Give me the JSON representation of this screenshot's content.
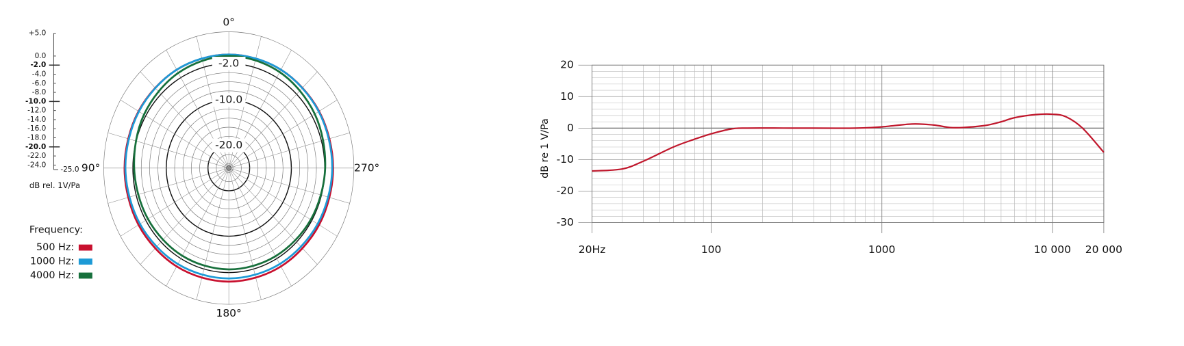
{
  "chart_data": [
    {
      "type": "polar",
      "rlim": [
        -25,
        5
      ],
      "rticks": [
        {
          "value": 5,
          "label": "+5.0"
        },
        {
          "value": 0,
          "label": "0.0"
        },
        {
          "value": -2,
          "label": "-2.0"
        },
        {
          "value": -4,
          "label": "-4.0"
        },
        {
          "value": -6,
          "label": "-6.0"
        },
        {
          "value": -8,
          "label": "-8.0"
        },
        {
          "value": -10,
          "label": "-10.0"
        },
        {
          "value": -12,
          "label": "-12.0"
        },
        {
          "value": -14,
          "label": "-14.0"
        },
        {
          "value": -16,
          "label": "-16.0"
        },
        {
          "value": -18,
          "label": "-18.0"
        },
        {
          "value": -20,
          "label": "-20.0"
        },
        {
          "value": -22,
          "label": "-22.0"
        },
        {
          "value": -24,
          "label": "-24.0"
        },
        {
          "value": -25,
          "label": "-25.0"
        }
      ],
      "ring_labels": [
        {
          "value": -2,
          "label": "-2.0"
        },
        {
          "value": -10,
          "label": "-10.0"
        },
        {
          "value": -20,
          "label": "-20.0"
        }
      ],
      "angle_ticks": [
        {
          "value": 0,
          "label": "0°"
        },
        {
          "value": 90,
          "label": "90°"
        },
        {
          "value": 180,
          "label": "180°"
        },
        {
          "value": 270,
          "label": "270°"
        }
      ],
      "rlabel": "dB rel. 1V/Pa",
      "legend_title": "Frequency:",
      "theta": [
        0,
        30,
        60,
        90,
        120,
        150,
        180,
        210,
        240,
        270,
        300,
        330
      ],
      "series": [
        {
          "name": "500 Hz:",
          "color": "#c8102e",
          "values": [
            0,
            0,
            0,
            0,
            0,
            0,
            0,
            0,
            0,
            0,
            0,
            0
          ]
        },
        {
          "name": "1000 Hz:",
          "color": "#1d9ad6",
          "values": [
            0,
            0,
            -0.1,
            -0.2,
            -0.4,
            -0.6,
            -0.7,
            -0.6,
            -0.4,
            -0.2,
            -0.1,
            0
          ]
        },
        {
          "name": "4000 Hz:",
          "color": "#17703c",
          "values": [
            -0.3,
            -0.8,
            -1.5,
            -2.3,
            -2.6,
            -2.7,
            -2.7,
            -2.6,
            -2.3,
            -1.9,
            -1.2,
            -0.6
          ]
        }
      ]
    },
    {
      "type": "line",
      "ylabel": "dB re 1 V/Pa",
      "xlog": true,
      "xlim": [
        20,
        20000
      ],
      "xticks": [
        {
          "value": 20,
          "label": "20Hz"
        },
        100,
        1000,
        {
          "value": 10000,
          "label": "10 000"
        },
        {
          "value": 20000,
          "label": "20 000"
        }
      ],
      "xminorticks": [
        30,
        40,
        50,
        60,
        70,
        80,
        90,
        200,
        300,
        400,
        500,
        600,
        700,
        800,
        900,
        2000,
        3000,
        4000,
        5000,
        6000,
        7000,
        8000,
        9000
      ],
      "ylim": [
        -30,
        20
      ],
      "yticks": [
        -30,
        -20,
        -10,
        0,
        10,
        20
      ],
      "yminorticks": [
        -28,
        -26,
        -24,
        -22,
        -18,
        -16,
        -14,
        -12,
        -8,
        -6,
        -4,
        -2,
        2,
        4,
        6,
        8,
        12,
        14,
        16,
        18
      ],
      "grid": true,
      "color": "#c0172c",
      "x": [
        20,
        30,
        40,
        60,
        80,
        100,
        130,
        160,
        300,
        700,
        1000,
        1500,
        2000,
        2500,
        3000,
        4000,
        5000,
        6000,
        8000,
        10000,
        12000,
        15000,
        20000
      ],
      "values": [
        -13.6,
        -13,
        -10.5,
        -6,
        -3.5,
        -1.8,
        -0.3,
        0,
        0,
        0,
        0.4,
        1.3,
        1,
        0.2,
        0.2,
        0.8,
        2,
        3.3,
        4.3,
        4.4,
        3.6,
        0,
        -7.7
      ]
    }
  ]
}
